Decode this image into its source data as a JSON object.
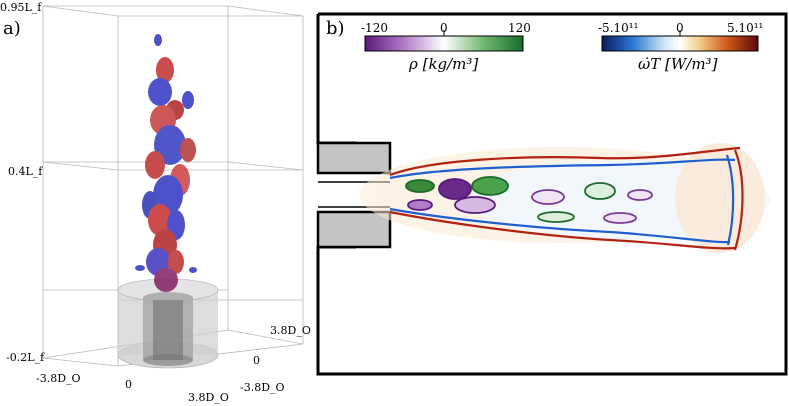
{
  "panel_a": {
    "letter": "a)",
    "z_top": "0.95L_f",
    "z_mid": "0.4L_f",
    "z_bot": "-0.2L_f",
    "x_left": "-3.8D_O",
    "x_mid": "0",
    "x_right": "3.8D_O",
    "y_back": "3.8D_O",
    "y_mid": "0",
    "y_front": "-3.8D_O"
  },
  "panel_b": {
    "letter": "b)",
    "colorbar_rho": {
      "min_label": "-120",
      "mid_label": "0",
      "max_label": "120",
      "title": "ρ [kg/m³]",
      "colors": [
        "#5a1a7a",
        "#b47cc8",
        "#ffffff",
        "#6fb96f",
        "#1a6b2a"
      ]
    },
    "colorbar_omega": {
      "min_label": "-5.10¹¹",
      "mid_label": "0",
      "max_label": "5.10¹¹",
      "title": "ω̇T [W/m³]",
      "colors": [
        "#0a1a5a",
        "#2a7ad6",
        "#cfe6f2",
        "#ffffff",
        "#f3d08a",
        "#d05a1a",
        "#5a0a0a"
      ]
    }
  }
}
